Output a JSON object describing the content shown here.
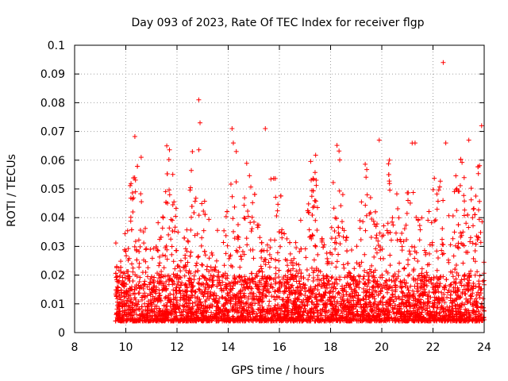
{
  "chart_data": {
    "type": "scatter",
    "title": "Day 093 of 2023, Rate Of TEC Index for receiver flgp",
    "xlabel": "GPS time / hours",
    "ylabel": "ROTI / TECUs",
    "xlim": [
      8,
      24
    ],
    "ylim": [
      0,
      0.1
    ],
    "xticks": [
      8,
      10,
      12,
      14,
      16,
      18,
      20,
      22,
      24
    ],
    "xtick_labels": [
      "8",
      "10",
      "12",
      "14",
      "16",
      "18",
      "20",
      "22",
      "24"
    ],
    "yticks": [
      0,
      0.01,
      0.02,
      0.03,
      0.04,
      0.05,
      0.06,
      0.07,
      0.08,
      0.09,
      0.1
    ],
    "ytick_labels": [
      "0",
      "0.01",
      "0.02",
      "0.03",
      "0.04",
      "0.05",
      "0.06",
      "0.07",
      "0.08",
      "0.09",
      "0.1"
    ],
    "grid": true,
    "marker": "+",
    "series_color": "#ff0000",
    "series": [
      {
        "name": "ROTI",
        "x_start": 9.6,
        "x_end": 24,
        "typical_range": [
          0.004,
          0.02
        ],
        "notable_points": [
          {
            "x": 12.85,
            "y": 0.081
          },
          {
            "x": 12.9,
            "y": 0.073
          },
          {
            "x": 14.15,
            "y": 0.071
          },
          {
            "x": 14.2,
            "y": 0.066
          },
          {
            "x": 15.45,
            "y": 0.071
          },
          {
            "x": 19.9,
            "y": 0.067
          },
          {
            "x": 21.3,
            "y": 0.066
          },
          {
            "x": 22.4,
            "y": 0.094
          },
          {
            "x": 22.5,
            "y": 0.066
          },
          {
            "x": 23.9,
            "y": 0.072
          },
          {
            "x": 10.6,
            "y": 0.061
          },
          {
            "x": 11.6,
            "y": 0.065
          },
          {
            "x": 12.6,
            "y": 0.063
          },
          {
            "x": 20.3,
            "y": 0.06
          },
          {
            "x": 23.4,
            "y": 0.067
          }
        ]
      }
    ]
  }
}
